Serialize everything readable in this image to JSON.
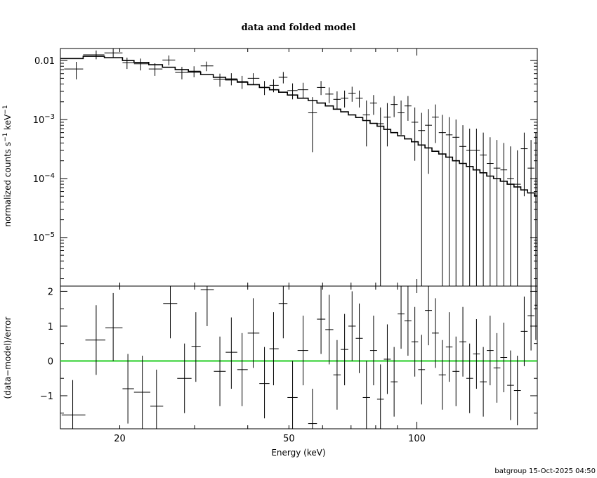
{
  "title": "data and folded model",
  "footer": "batgroup 15-Oct-2025 04:50",
  "colors": {
    "data": "#000000",
    "model": "#000000",
    "zero_line": "#22cc22",
    "frame": "#000000"
  },
  "chart_data": [
    {
      "type": "scatter",
      "panel": "top",
      "ylabel_parts": {
        "a": "normalized counts s",
        "a_sup": "−1",
        "b": " keV",
        "b_sup": "−1"
      },
      "xscale": "log",
      "yscale": "log",
      "xlim": [
        14.5,
        192
      ],
      "ylim": [
        1.5e-06,
        0.016
      ],
      "ytick_labels": [
        {
          "v": 0.01,
          "base": "0.01",
          "sup": ""
        },
        {
          "v": 0.001,
          "base": "10",
          "sup": "−3"
        },
        {
          "v": 0.0001,
          "base": "10",
          "sup": "−4"
        },
        {
          "v": 1e-05,
          "base": "10",
          "sup": "−5"
        }
      ],
      "data_points": [
        {
          "x": 15.8,
          "xlo": 14.8,
          "xhi": 16.4,
          "y": 0.0072,
          "ylo": 0.0048,
          "yhi": 0.0095
        },
        {
          "x": 17.6,
          "xlo": 16.4,
          "xhi": 18.4,
          "y": 0.0125,
          "ylo": 0.0105,
          "yhi": 0.0148
        },
        {
          "x": 19.3,
          "xlo": 18.4,
          "xhi": 20.3,
          "y": 0.0135,
          "ylo": 0.0113,
          "yhi": 0.0158
        },
        {
          "x": 20.8,
          "xlo": 20.3,
          "xhi": 21.6,
          "y": 0.0092,
          "ylo": 0.0072,
          "yhi": 0.0112
        },
        {
          "x": 22.4,
          "xlo": 21.6,
          "xhi": 23.4,
          "y": 0.0088,
          "ylo": 0.0068,
          "yhi": 0.0108
        },
        {
          "x": 24.2,
          "xlo": 23.4,
          "xhi": 25.2,
          "y": 0.0072,
          "ylo": 0.0055,
          "yhi": 0.009
        },
        {
          "x": 26.1,
          "xlo": 25.2,
          "xhi": 27.0,
          "y": 0.0102,
          "ylo": 0.0083,
          "yhi": 0.0122
        },
        {
          "x": 28.0,
          "xlo": 27.0,
          "xhi": 29.0,
          "y": 0.0063,
          "ylo": 0.0048,
          "yhi": 0.0078
        },
        {
          "x": 29.9,
          "xlo": 29.0,
          "xhi": 31.0,
          "y": 0.0066,
          "ylo": 0.0052,
          "yhi": 0.008
        },
        {
          "x": 32.0,
          "xlo": 31.0,
          "xhi": 33.2,
          "y": 0.0081,
          "ylo": 0.0066,
          "yhi": 0.0096
        },
        {
          "x": 34.4,
          "xlo": 33.2,
          "xhi": 35.5,
          "y": 0.0048,
          "ylo": 0.0036,
          "yhi": 0.006
        },
        {
          "x": 36.6,
          "xlo": 35.5,
          "xhi": 37.8,
          "y": 0.0049,
          "ylo": 0.0038,
          "yhi": 0.0061
        },
        {
          "x": 38.8,
          "xlo": 37.8,
          "xhi": 40.0,
          "y": 0.0044,
          "ylo": 0.0033,
          "yhi": 0.0055
        },
        {
          "x": 41.2,
          "xlo": 40.0,
          "xhi": 42.6,
          "y": 0.005,
          "ylo": 0.0039,
          "yhi": 0.0061
        },
        {
          "x": 43.8,
          "xlo": 42.6,
          "xhi": 45.0,
          "y": 0.0035,
          "ylo": 0.0026,
          "yhi": 0.0045
        },
        {
          "x": 46.0,
          "xlo": 45.0,
          "xhi": 47.3,
          "y": 0.0038,
          "ylo": 0.0029,
          "yhi": 0.0048
        },
        {
          "x": 48.5,
          "xlo": 47.3,
          "xhi": 49.6,
          "y": 0.0052,
          "ylo": 0.0041,
          "yhi": 0.0064
        },
        {
          "x": 51.0,
          "xlo": 49.6,
          "xhi": 52.4,
          "y": 0.0031,
          "ylo": 0.0022,
          "yhi": 0.0041
        },
        {
          "x": 54.0,
          "xlo": 52.4,
          "xhi": 55.5,
          "y": 0.0032,
          "ylo": 0.0023,
          "yhi": 0.0042
        },
        {
          "x": 56.8,
          "xlo": 55.5,
          "xhi": 58.2,
          "y": 0.0013,
          "ylo": 0.00028,
          "yhi": 0.0024
        },
        {
          "x": 59.5,
          "xlo": 58.2,
          "xhi": 60.9,
          "y": 0.0035,
          "ylo": 0.0026,
          "yhi": 0.0045
        },
        {
          "x": 62.2,
          "xlo": 60.9,
          "xhi": 63.6,
          "y": 0.0027,
          "ylo": 0.0019,
          "yhi": 0.0035
        },
        {
          "x": 64.9,
          "xlo": 63.6,
          "xhi": 66.2,
          "y": 0.0022,
          "ylo": 0.0015,
          "yhi": 0.003
        },
        {
          "x": 67.6,
          "xlo": 66.2,
          "xhi": 69.0,
          "y": 0.0023,
          "ylo": 0.0016,
          "yhi": 0.0031
        },
        {
          "x": 70.4,
          "xlo": 69.0,
          "xhi": 71.8,
          "y": 0.0028,
          "ylo": 0.002,
          "yhi": 0.0036
        },
        {
          "x": 73.2,
          "xlo": 71.8,
          "xhi": 74.6,
          "y": 0.0023,
          "ylo": 0.0016,
          "yhi": 0.0031
        },
        {
          "x": 76.1,
          "xlo": 74.6,
          "xhi": 77.6,
          "y": 0.0012,
          "ylo": 0.00035,
          "yhi": 0.0021
        },
        {
          "x": 79.1,
          "xlo": 77.6,
          "xhi": 80.6,
          "y": 0.0019,
          "ylo": 0.0012,
          "yhi": 0.0026
        },
        {
          "x": 82.1,
          "xlo": 80.6,
          "xhi": 83.6,
          "y": 0.00085,
          "ylo": 1e-07,
          "yhi": 0.0016
        },
        {
          "x": 85.2,
          "xlo": 83.6,
          "xhi": 86.8,
          "y": 0.0011,
          "ylo": 0.00035,
          "yhi": 0.0019
        },
        {
          "x": 88.4,
          "xlo": 86.8,
          "xhi": 90.1,
          "y": 0.0018,
          "ylo": 0.0011,
          "yhi": 0.0025
        },
        {
          "x": 91.8,
          "xlo": 90.1,
          "xhi": 93.5,
          "y": 0.0013,
          "ylo": 0.00055,
          "yhi": 0.0021
        },
        {
          "x": 95.3,
          "xlo": 93.5,
          "xhi": 97.1,
          "y": 0.0017,
          "ylo": 0.00095,
          "yhi": 0.0025
        },
        {
          "x": 98.9,
          "xlo": 97.1,
          "xhi": 100.7,
          "y": 0.0009,
          "ylo": 0.0002,
          "yhi": 0.0016
        },
        {
          "x": 102.6,
          "xlo": 100.7,
          "xhi": 104.5,
          "y": 0.00065,
          "ylo": 1e-07,
          "yhi": 0.0013
        },
        {
          "x": 106.5,
          "xlo": 104.5,
          "xhi": 108.5,
          "y": 0.0008,
          "ylo": 0.00012,
          "yhi": 0.0015
        },
        {
          "x": 110.6,
          "xlo": 108.5,
          "xhi": 112.6,
          "y": 0.0011,
          "ylo": 0.0004,
          "yhi": 0.0018
        },
        {
          "x": 114.8,
          "xlo": 112.6,
          "xhi": 117.0,
          "y": 0.0006,
          "ylo": 1e-07,
          "yhi": 0.0012
        },
        {
          "x": 119.1,
          "xlo": 117.0,
          "xhi": 121.3,
          "y": 0.00055,
          "ylo": 1e-07,
          "yhi": 0.0011
        },
        {
          "x": 123.6,
          "xlo": 121.3,
          "xhi": 125.9,
          "y": 0.0005,
          "ylo": 1e-07,
          "yhi": 0.001
        },
        {
          "x": 128.3,
          "xlo": 125.9,
          "xhi": 130.7,
          "y": 0.00035,
          "ylo": 1e-07,
          "yhi": 0.0008
        },
        {
          "x": 133.1,
          "xlo": 130.7,
          "xhi": 135.6,
          "y": 0.0003,
          "ylo": 1e-07,
          "yhi": 0.0007
        },
        {
          "x": 138.1,
          "xlo": 135.6,
          "xhi": 140.7,
          "y": 0.0003,
          "ylo": 1e-07,
          "yhi": 0.0007
        },
        {
          "x": 143.3,
          "xlo": 140.7,
          "xhi": 146.0,
          "y": 0.00025,
          "ylo": 1e-07,
          "yhi": 0.0006
        },
        {
          "x": 148.7,
          "xlo": 146.0,
          "xhi": 151.5,
          "y": 0.00018,
          "ylo": 1e-07,
          "yhi": 0.0005
        },
        {
          "x": 154.3,
          "xlo": 151.5,
          "xhi": 157.2,
          "y": 0.00015,
          "ylo": 1e-07,
          "yhi": 0.00045
        },
        {
          "x": 160.1,
          "xlo": 157.2,
          "xhi": 163.1,
          "y": 0.00014,
          "ylo": 1e-07,
          "yhi": 0.0004
        },
        {
          "x": 166.1,
          "xlo": 163.1,
          "xhi": 169.2,
          "y": 0.0001,
          "ylo": 1e-07,
          "yhi": 0.00035
        },
        {
          "x": 172.4,
          "xlo": 169.2,
          "xhi": 175.6,
          "y": 8e-05,
          "ylo": 1e-07,
          "yhi": 0.0003
        },
        {
          "x": 178.9,
          "xlo": 175.6,
          "xhi": 182.2,
          "y": 0.00032,
          "ylo": 5e-05,
          "yhi": 0.0006
        },
        {
          "x": 185.6,
          "xlo": 182.2,
          "xhi": 189.0,
          "y": 0.00015,
          "ylo": 1e-07,
          "yhi": 0.00045
        },
        {
          "x": 190.5,
          "xlo": 189.0,
          "xhi": 192.0,
          "y": 0.00025,
          "ylo": 1e-07,
          "yhi": 0.0006
        }
      ],
      "model_edges": [
        14.5,
        16.4,
        18.4,
        20.3,
        21.6,
        23.4,
        25.2,
        27.0,
        29.0,
        31.0,
        33.2,
        35.5,
        37.8,
        40.0,
        42.6,
        45.0,
        47.3,
        49.6,
        52.4,
        55.5,
        58.2,
        60.9,
        63.6,
        66.2,
        69.0,
        71.8,
        74.6,
        77.6,
        80.6,
        83.6,
        86.8,
        90.1,
        93.5,
        97.1,
        100.7,
        104.5,
        108.5,
        112.6,
        117.0,
        121.3,
        125.9,
        130.7,
        135.6,
        140.7,
        146.0,
        151.5,
        157.2,
        163.1,
        169.2,
        175.6,
        182.2,
        189.0,
        192.0
      ],
      "model_values": [
        0.0108,
        0.0118,
        0.0112,
        0.01,
        0.0093,
        0.0085,
        0.0077,
        0.007,
        0.0064,
        0.0058,
        0.0052,
        0.0047,
        0.0043,
        0.0039,
        0.0035,
        0.0032,
        0.0029,
        0.0026,
        0.0023,
        0.0021,
        0.0019,
        0.0017,
        0.0015,
        0.00135,
        0.0012,
        0.00108,
        0.00096,
        0.00086,
        0.00077,
        0.00068,
        0.0006,
        0.00053,
        0.00047,
        0.00042,
        0.00037,
        0.00033,
        0.00029,
        0.00026,
        0.00023,
        0.0002,
        0.00018,
        0.00016,
        0.00014,
        0.000125,
        0.00011,
        0.0001,
        9e-05,
        8e-05,
        7.2e-05,
        6.4e-05,
        5.7e-05,
        5.1e-05
      ]
    },
    {
      "type": "scatter",
      "panel": "bottom",
      "xlabel": "Energy (keV)",
      "ylabel": "(data−model)/error",
      "xscale": "log",
      "xlim": [
        14.5,
        192
      ],
      "ylim": [
        -1.95,
        2.15
      ],
      "xtick_labels": [
        {
          "v": 20,
          "label": "20"
        },
        {
          "v": 50,
          "label": "50"
        },
        {
          "v": 100,
          "label": "100"
        }
      ],
      "ytick_labels": [
        {
          "v": 2,
          "label": "2"
        },
        {
          "v": 1,
          "label": "1"
        },
        {
          "v": 0,
          "label": "0"
        },
        {
          "v": -1,
          "label": "−1"
        }
      ],
      "zero_line": 0,
      "data_points": [
        {
          "x": 15.5,
          "xlo": 14.6,
          "xhi": 16.6,
          "y": -1.55,
          "ylo": -2.4,
          "yhi": -0.55
        },
        {
          "x": 17.6,
          "xlo": 16.6,
          "xhi": 18.5,
          "y": 0.6,
          "ylo": -0.4,
          "yhi": 1.6
        },
        {
          "x": 19.3,
          "xlo": 18.5,
          "xhi": 20.3,
          "y": 0.95,
          "ylo": 0.0,
          "yhi": 1.95
        },
        {
          "x": 20.9,
          "xlo": 20.3,
          "xhi": 21.6,
          "y": -0.8,
          "ylo": -1.8,
          "yhi": 0.2
        },
        {
          "x": 22.6,
          "xlo": 21.6,
          "xhi": 23.6,
          "y": -0.9,
          "ylo": -1.95,
          "yhi": 0.15
        },
        {
          "x": 24.4,
          "xlo": 23.6,
          "xhi": 25.3,
          "y": -1.3,
          "ylo": -2.4,
          "yhi": -0.25
        },
        {
          "x": 26.3,
          "xlo": 25.3,
          "xhi": 27.3,
          "y": 1.65,
          "ylo": 0.65,
          "yhi": 2.7
        },
        {
          "x": 28.4,
          "xlo": 27.3,
          "xhi": 29.5,
          "y": -0.5,
          "ylo": -1.5,
          "yhi": 0.5
        },
        {
          "x": 30.2,
          "xlo": 29.5,
          "xhi": 31.0,
          "y": 0.42,
          "ylo": -0.6,
          "yhi": 1.4
        },
        {
          "x": 32.1,
          "xlo": 31.0,
          "xhi": 33.3,
          "y": 2.05,
          "ylo": 1.0,
          "yhi": 3.0
        },
        {
          "x": 34.4,
          "xlo": 33.3,
          "xhi": 35.5,
          "y": -0.3,
          "ylo": -1.3,
          "yhi": 0.7
        },
        {
          "x": 36.6,
          "xlo": 35.5,
          "xhi": 37.8,
          "y": 0.25,
          "ylo": -0.8,
          "yhi": 1.25
        },
        {
          "x": 38.8,
          "xlo": 37.8,
          "xhi": 40.0,
          "y": -0.25,
          "ylo": -1.3,
          "yhi": 0.8
        },
        {
          "x": 41.2,
          "xlo": 40.0,
          "xhi": 42.6,
          "y": 0.8,
          "ylo": -0.2,
          "yhi": 1.8
        },
        {
          "x": 43.8,
          "xlo": 42.6,
          "xhi": 45.0,
          "y": -0.65,
          "ylo": -1.65,
          "yhi": 0.4
        },
        {
          "x": 46.0,
          "xlo": 45.0,
          "xhi": 47.3,
          "y": 0.35,
          "ylo": -0.7,
          "yhi": 1.4
        },
        {
          "x": 48.5,
          "xlo": 47.3,
          "xhi": 49.6,
          "y": 1.65,
          "ylo": 0.65,
          "yhi": 2.7
        },
        {
          "x": 51.0,
          "xlo": 49.6,
          "xhi": 52.4,
          "y": -1.05,
          "ylo": -2.05,
          "yhi": 0.0
        },
        {
          "x": 54.0,
          "xlo": 52.4,
          "xhi": 55.5,
          "y": 0.3,
          "ylo": -0.7,
          "yhi": 1.3
        },
        {
          "x": 56.8,
          "xlo": 55.5,
          "xhi": 58.2,
          "y": -1.8,
          "ylo": -2.8,
          "yhi": -0.8
        },
        {
          "x": 59.5,
          "xlo": 58.2,
          "xhi": 60.9,
          "y": 1.2,
          "ylo": 0.2,
          "yhi": 2.2
        },
        {
          "x": 62.2,
          "xlo": 60.9,
          "xhi": 63.6,
          "y": 0.9,
          "ylo": -0.1,
          "yhi": 1.9
        },
        {
          "x": 64.9,
          "xlo": 63.6,
          "xhi": 66.2,
          "y": -0.4,
          "ylo": -1.4,
          "yhi": 0.6
        },
        {
          "x": 67.6,
          "xlo": 66.2,
          "xhi": 69.0,
          "y": 0.33,
          "ylo": -0.7,
          "yhi": 1.35
        },
        {
          "x": 70.4,
          "xlo": 69.0,
          "xhi": 71.8,
          "y": 1.0,
          "ylo": 0.0,
          "yhi": 2.0
        },
        {
          "x": 73.2,
          "xlo": 71.8,
          "xhi": 74.6,
          "y": 0.65,
          "ylo": -0.35,
          "yhi": 1.65
        },
        {
          "x": 76.1,
          "xlo": 74.6,
          "xhi": 77.6,
          "y": -1.05,
          "ylo": -2.05,
          "yhi": 0.0
        },
        {
          "x": 79.1,
          "xlo": 77.6,
          "xhi": 80.6,
          "y": 0.3,
          "ylo": -0.7,
          "yhi": 1.3
        },
        {
          "x": 82.1,
          "xlo": 80.6,
          "xhi": 83.6,
          "y": -1.1,
          "ylo": -2.1,
          "yhi": -0.1
        },
        {
          "x": 85.2,
          "xlo": 83.6,
          "xhi": 86.8,
          "y": 0.05,
          "ylo": -0.95,
          "yhi": 1.05
        },
        {
          "x": 88.4,
          "xlo": 86.8,
          "xhi": 90.1,
          "y": -0.6,
          "ylo": -1.6,
          "yhi": 0.4
        },
        {
          "x": 91.8,
          "xlo": 90.1,
          "xhi": 93.5,
          "y": 1.35,
          "ylo": 0.35,
          "yhi": 2.35
        },
        {
          "x": 95.3,
          "xlo": 93.5,
          "xhi": 97.1,
          "y": 1.15,
          "ylo": 0.15,
          "yhi": 2.15
        },
        {
          "x": 98.9,
          "xlo": 97.1,
          "xhi": 100.7,
          "y": 0.55,
          "ylo": -0.45,
          "yhi": 1.55
        },
        {
          "x": 102.6,
          "xlo": 100.7,
          "xhi": 104.5,
          "y": -0.25,
          "ylo": -1.25,
          "yhi": 0.75
        },
        {
          "x": 106.5,
          "xlo": 104.5,
          "xhi": 108.5,
          "y": 1.45,
          "ylo": 0.45,
          "yhi": 2.45
        },
        {
          "x": 110.6,
          "xlo": 108.5,
          "xhi": 112.6,
          "y": 0.8,
          "ylo": -0.2,
          "yhi": 1.8
        },
        {
          "x": 114.8,
          "xlo": 112.6,
          "xhi": 117.0,
          "y": -0.4,
          "ylo": -1.4,
          "yhi": 0.6
        },
        {
          "x": 119.1,
          "xlo": 117.0,
          "xhi": 121.3,
          "y": 0.4,
          "ylo": -0.6,
          "yhi": 1.4
        },
        {
          "x": 123.6,
          "xlo": 121.3,
          "xhi": 125.9,
          "y": -0.3,
          "ylo": -1.3,
          "yhi": 0.7
        },
        {
          "x": 128.3,
          "xlo": 125.9,
          "xhi": 130.7,
          "y": 0.55,
          "ylo": -0.45,
          "yhi": 1.55
        },
        {
          "x": 133.1,
          "xlo": 130.7,
          "xhi": 135.6,
          "y": -0.5,
          "ylo": -1.5,
          "yhi": 0.5
        },
        {
          "x": 138.1,
          "xlo": 135.6,
          "xhi": 140.7,
          "y": 0.2,
          "ylo": -0.8,
          "yhi": 1.2
        },
        {
          "x": 143.3,
          "xlo": 140.7,
          "xhi": 146.0,
          "y": -0.6,
          "ylo": -1.6,
          "yhi": 0.4
        },
        {
          "x": 148.7,
          "xlo": 146.0,
          "xhi": 151.5,
          "y": 0.3,
          "ylo": -0.7,
          "yhi": 1.3
        },
        {
          "x": 154.3,
          "xlo": 151.5,
          "xhi": 157.2,
          "y": -0.2,
          "ylo": -1.2,
          "yhi": 0.8
        },
        {
          "x": 160.1,
          "xlo": 157.2,
          "xhi": 163.1,
          "y": 0.1,
          "ylo": -0.9,
          "yhi": 1.1
        },
        {
          "x": 166.1,
          "xlo": 163.1,
          "xhi": 169.2,
          "y": -0.7,
          "ylo": -1.7,
          "yhi": 0.3
        },
        {
          "x": 172.4,
          "xlo": 169.2,
          "xhi": 175.6,
          "y": -0.85,
          "ylo": -1.85,
          "yhi": 0.15
        },
        {
          "x": 178.9,
          "xlo": 175.6,
          "xhi": 182.2,
          "y": 0.85,
          "ylo": -0.15,
          "yhi": 1.85
        },
        {
          "x": 185.6,
          "xlo": 182.2,
          "xhi": 189.0,
          "y": 1.3,
          "ylo": 0.3,
          "yhi": 2.3
        },
        {
          "x": 190.5,
          "xlo": 189.0,
          "xhi": 192.0,
          "y": 1.6,
          "ylo": 0.6,
          "yhi": 2.6
        }
      ]
    }
  ]
}
